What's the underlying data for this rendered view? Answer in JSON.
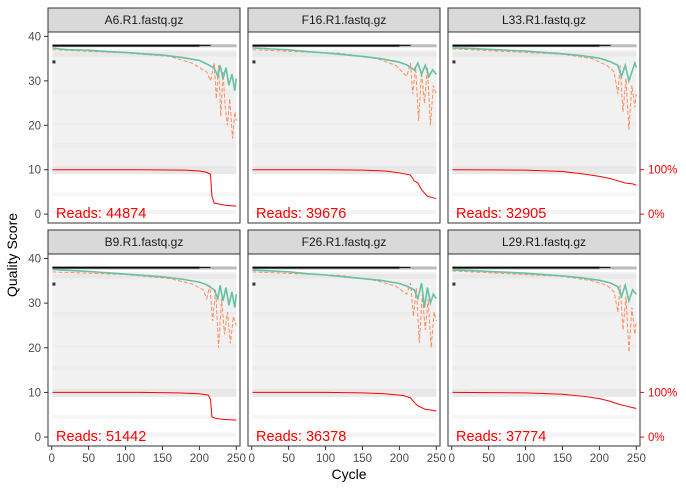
{
  "chart_data": {
    "type": "line",
    "xlabel": "Cycle",
    "ylabel": "Quality Score",
    "xlim": [
      -5,
      255
    ],
    "ylim": [
      -2,
      41
    ],
    "x_ticks": [
      0,
      50,
      100,
      150,
      200,
      250
    ],
    "y_ticks": [
      0,
      10,
      20,
      30,
      40
    ],
    "right_axis": {
      "ticks": [
        "100%",
        "0%"
      ],
      "values": [
        10,
        0
      ]
    },
    "reads_label": "Reads:",
    "colors": {
      "mean": "#66c2a5",
      "quartile": "#fc8d62",
      "median": "#000000",
      "read_count": "#ff0000",
      "strip_bg": "#d9d9d9",
      "heat": "#e6e6e6"
    },
    "panels": [
      {
        "title": "A6.R1.fastq.gz",
        "reads": "44874",
        "mean": [
          [
            1,
            37.4
          ],
          [
            10,
            37.2
          ],
          [
            25,
            37.0
          ],
          [
            50,
            36.9
          ],
          [
            75,
            36.6
          ],
          [
            100,
            36.4
          ],
          [
            125,
            36.1
          ],
          [
            150,
            35.8
          ],
          [
            175,
            35.3
          ],
          [
            200,
            34.6
          ],
          [
            210,
            33.8
          ],
          [
            220,
            32.9
          ],
          [
            225,
            31.0
          ],
          [
            228,
            33.5
          ],
          [
            232,
            30.5
          ],
          [
            236,
            33.0
          ],
          [
            240,
            29.0
          ],
          [
            244,
            31.5
          ],
          [
            248,
            27.8
          ],
          [
            250,
            30.5
          ]
        ],
        "q1": [
          [
            1,
            37.0
          ],
          [
            100,
            36.3
          ],
          [
            160,
            35.5
          ],
          [
            190,
            34.0
          ],
          [
            210,
            32.0
          ],
          [
            215,
            30.0
          ],
          [
            220,
            34.0
          ],
          [
            223,
            26.0
          ],
          [
            226,
            33.5
          ],
          [
            229,
            22.0
          ],
          [
            232,
            32.0
          ],
          [
            235,
            24.0
          ],
          [
            238,
            20.0
          ],
          [
            241,
            26.0
          ],
          [
            245,
            17.0
          ],
          [
            248,
            23.0
          ],
          [
            250,
            21.0
          ]
        ],
        "read_pct": [
          [
            1,
            100
          ],
          [
            120,
            100
          ],
          [
            180,
            99
          ],
          [
            200,
            97
          ],
          [
            210,
            94
          ],
          [
            215,
            90
          ],
          [
            217,
            40
          ],
          [
            220,
            25
          ],
          [
            235,
            20
          ],
          [
            250,
            18
          ]
        ]
      },
      {
        "title": "F16.R1.fastq.gz",
        "reads": "39676",
        "mean": [
          [
            1,
            37.4
          ],
          [
            25,
            37.2
          ],
          [
            50,
            37.0
          ],
          [
            75,
            36.6
          ],
          [
            100,
            36.3
          ],
          [
            125,
            35.9
          ],
          [
            150,
            35.5
          ],
          [
            175,
            35.0
          ],
          [
            200,
            34.2
          ],
          [
            210,
            33.6
          ],
          [
            220,
            32.5
          ],
          [
            225,
            34.0
          ],
          [
            230,
            31.5
          ],
          [
            235,
            33.5
          ],
          [
            240,
            31.0
          ],
          [
            245,
            32.5
          ],
          [
            250,
            31.5
          ]
        ],
        "q1": [
          [
            1,
            37.0
          ],
          [
            120,
            36.2
          ],
          [
            170,
            35.0
          ],
          [
            195,
            33.5
          ],
          [
            210,
            31.0
          ],
          [
            215,
            34.0
          ],
          [
            218,
            27.0
          ],
          [
            222,
            33.0
          ],
          [
            226,
            21.0
          ],
          [
            230,
            32.0
          ],
          [
            234,
            25.0
          ],
          [
            238,
            33.0
          ],
          [
            242,
            20.0
          ],
          [
            246,
            29.0
          ],
          [
            250,
            27.0
          ]
        ],
        "read_pct": [
          [
            1,
            100
          ],
          [
            100,
            100
          ],
          [
            150,
            99
          ],
          [
            180,
            97
          ],
          [
            200,
            93
          ],
          [
            215,
            88
          ],
          [
            220,
            75
          ],
          [
            225,
            70
          ],
          [
            230,
            55
          ],
          [
            238,
            40
          ],
          [
            250,
            35
          ]
        ]
      },
      {
        "title": "L33.R1.fastq.gz",
        "reads": "32905",
        "mean": [
          [
            1,
            37.4
          ],
          [
            25,
            37.3
          ],
          [
            50,
            37.1
          ],
          [
            75,
            36.9
          ],
          [
            100,
            36.7
          ],
          [
            125,
            36.4
          ],
          [
            150,
            36.1
          ],
          [
            175,
            35.7
          ],
          [
            200,
            35.1
          ],
          [
            215,
            34.3
          ],
          [
            225,
            33.5
          ],
          [
            230,
            31.0
          ],
          [
            235,
            33.5
          ],
          [
            240,
            30.0
          ],
          [
            245,
            32.5
          ],
          [
            248,
            34.0
          ],
          [
            250,
            33.0
          ]
        ],
        "q1": [
          [
            1,
            37.2
          ],
          [
            150,
            36.0
          ],
          [
            190,
            35.0
          ],
          [
            210,
            33.5
          ],
          [
            220,
            32.0
          ],
          [
            225,
            27.0
          ],
          [
            228,
            33.5
          ],
          [
            232,
            23.0
          ],
          [
            236,
            30.5
          ],
          [
            240,
            19.0
          ],
          [
            244,
            29.0
          ],
          [
            248,
            24.0
          ],
          [
            250,
            27.0
          ]
        ],
        "read_pct": [
          [
            1,
            100
          ],
          [
            100,
            99
          ],
          [
            150,
            96
          ],
          [
            180,
            90
          ],
          [
            200,
            85
          ],
          [
            215,
            80
          ],
          [
            225,
            75
          ],
          [
            235,
            70
          ],
          [
            245,
            68
          ],
          [
            250,
            65
          ]
        ]
      },
      {
        "title": "B9.R1.fastq.gz",
        "reads": "51442",
        "mean": [
          [
            1,
            37.5
          ],
          [
            25,
            37.3
          ],
          [
            50,
            37.1
          ],
          [
            75,
            36.8
          ],
          [
            100,
            36.5
          ],
          [
            125,
            36.2
          ],
          [
            150,
            35.9
          ],
          [
            175,
            35.4
          ],
          [
            200,
            34.7
          ],
          [
            210,
            34.1
          ],
          [
            220,
            33.0
          ],
          [
            225,
            31.0
          ],
          [
            228,
            34.0
          ],
          [
            232,
            30.5
          ],
          [
            236,
            33.5
          ],
          [
            240,
            29.5
          ],
          [
            244,
            32.5
          ],
          [
            248,
            29.0
          ],
          [
            250,
            32.0
          ]
        ],
        "q1": [
          [
            1,
            37.0
          ],
          [
            100,
            36.4
          ],
          [
            160,
            35.5
          ],
          [
            190,
            34.3
          ],
          [
            205,
            33.0
          ],
          [
            210,
            31.0
          ],
          [
            214,
            34.0
          ],
          [
            218,
            26.0
          ],
          [
            222,
            33.0
          ],
          [
            226,
            20.0
          ],
          [
            230,
            31.0
          ],
          [
            234,
            23.0
          ],
          [
            238,
            28.0
          ],
          [
            242,
            21.0
          ],
          [
            246,
            27.0
          ],
          [
            250,
            25.0
          ]
        ],
        "read_pct": [
          [
            1,
            100
          ],
          [
            120,
            100
          ],
          [
            170,
            99
          ],
          [
            200,
            97
          ],
          [
            212,
            94
          ],
          [
            215,
            85
          ],
          [
            217,
            45
          ],
          [
            222,
            42
          ],
          [
            230,
            40
          ],
          [
            250,
            38
          ]
        ]
      },
      {
        "title": "F26.R1.fastq.gz",
        "reads": "36378",
        "mean": [
          [
            1,
            37.4
          ],
          [
            25,
            37.2
          ],
          [
            50,
            37.0
          ],
          [
            75,
            36.6
          ],
          [
            100,
            36.3
          ],
          [
            125,
            35.9
          ],
          [
            150,
            35.5
          ],
          [
            175,
            35.1
          ],
          [
            200,
            34.4
          ],
          [
            210,
            33.8
          ],
          [
            220,
            33.0
          ],
          [
            225,
            31.0
          ],
          [
            230,
            34.5
          ],
          [
            234,
            29.0
          ],
          [
            238,
            33.5
          ],
          [
            242,
            30.0
          ],
          [
            246,
            32.0
          ],
          [
            250,
            31.0
          ]
        ],
        "q1": [
          [
            1,
            37.0
          ],
          [
            120,
            36.2
          ],
          [
            170,
            35.0
          ],
          [
            195,
            33.8
          ],
          [
            210,
            32.0
          ],
          [
            215,
            34.5
          ],
          [
            219,
            27.0
          ],
          [
            223,
            33.5
          ],
          [
            227,
            21.0
          ],
          [
            231,
            32.0
          ],
          [
            235,
            24.0
          ],
          [
            239,
            31.0
          ],
          [
            243,
            20.0
          ],
          [
            247,
            28.0
          ],
          [
            250,
            26.0
          ]
        ],
        "read_pct": [
          [
            1,
            100
          ],
          [
            100,
            100
          ],
          [
            150,
            99
          ],
          [
            180,
            97
          ],
          [
            205,
            93
          ],
          [
            215,
            88
          ],
          [
            220,
            78
          ],
          [
            225,
            70
          ],
          [
            235,
            62
          ],
          [
            245,
            60
          ],
          [
            250,
            58
          ]
        ]
      },
      {
        "title": "L29.R1.fastq.gz",
        "reads": "37774",
        "mean": [
          [
            1,
            37.4
          ],
          [
            25,
            37.3
          ],
          [
            50,
            37.1
          ],
          [
            75,
            36.9
          ],
          [
            100,
            36.7
          ],
          [
            125,
            36.4
          ],
          [
            150,
            36.1
          ],
          [
            175,
            35.7
          ],
          [
            200,
            35.1
          ],
          [
            215,
            34.5
          ],
          [
            225,
            33.7
          ],
          [
            230,
            31.5
          ],
          [
            235,
            34.0
          ],
          [
            240,
            30.5
          ],
          [
            245,
            33.0
          ],
          [
            250,
            32.0
          ]
        ],
        "q1": [
          [
            1,
            37.2
          ],
          [
            150,
            36.0
          ],
          [
            190,
            35.0
          ],
          [
            210,
            34.0
          ],
          [
            220,
            32.5
          ],
          [
            225,
            28.0
          ],
          [
            228,
            34.0
          ],
          [
            232,
            24.0
          ],
          [
            236,
            31.5
          ],
          [
            240,
            19.0
          ],
          [
            244,
            29.0
          ],
          [
            248,
            23.0
          ],
          [
            250,
            26.0
          ]
        ],
        "read_pct": [
          [
            1,
            100
          ],
          [
            100,
            99
          ],
          [
            150,
            96
          ],
          [
            180,
            91
          ],
          [
            200,
            86
          ],
          [
            215,
            80
          ],
          [
            225,
            74
          ],
          [
            235,
            70
          ],
          [
            245,
            66
          ],
          [
            250,
            64
          ]
        ]
      }
    ]
  }
}
